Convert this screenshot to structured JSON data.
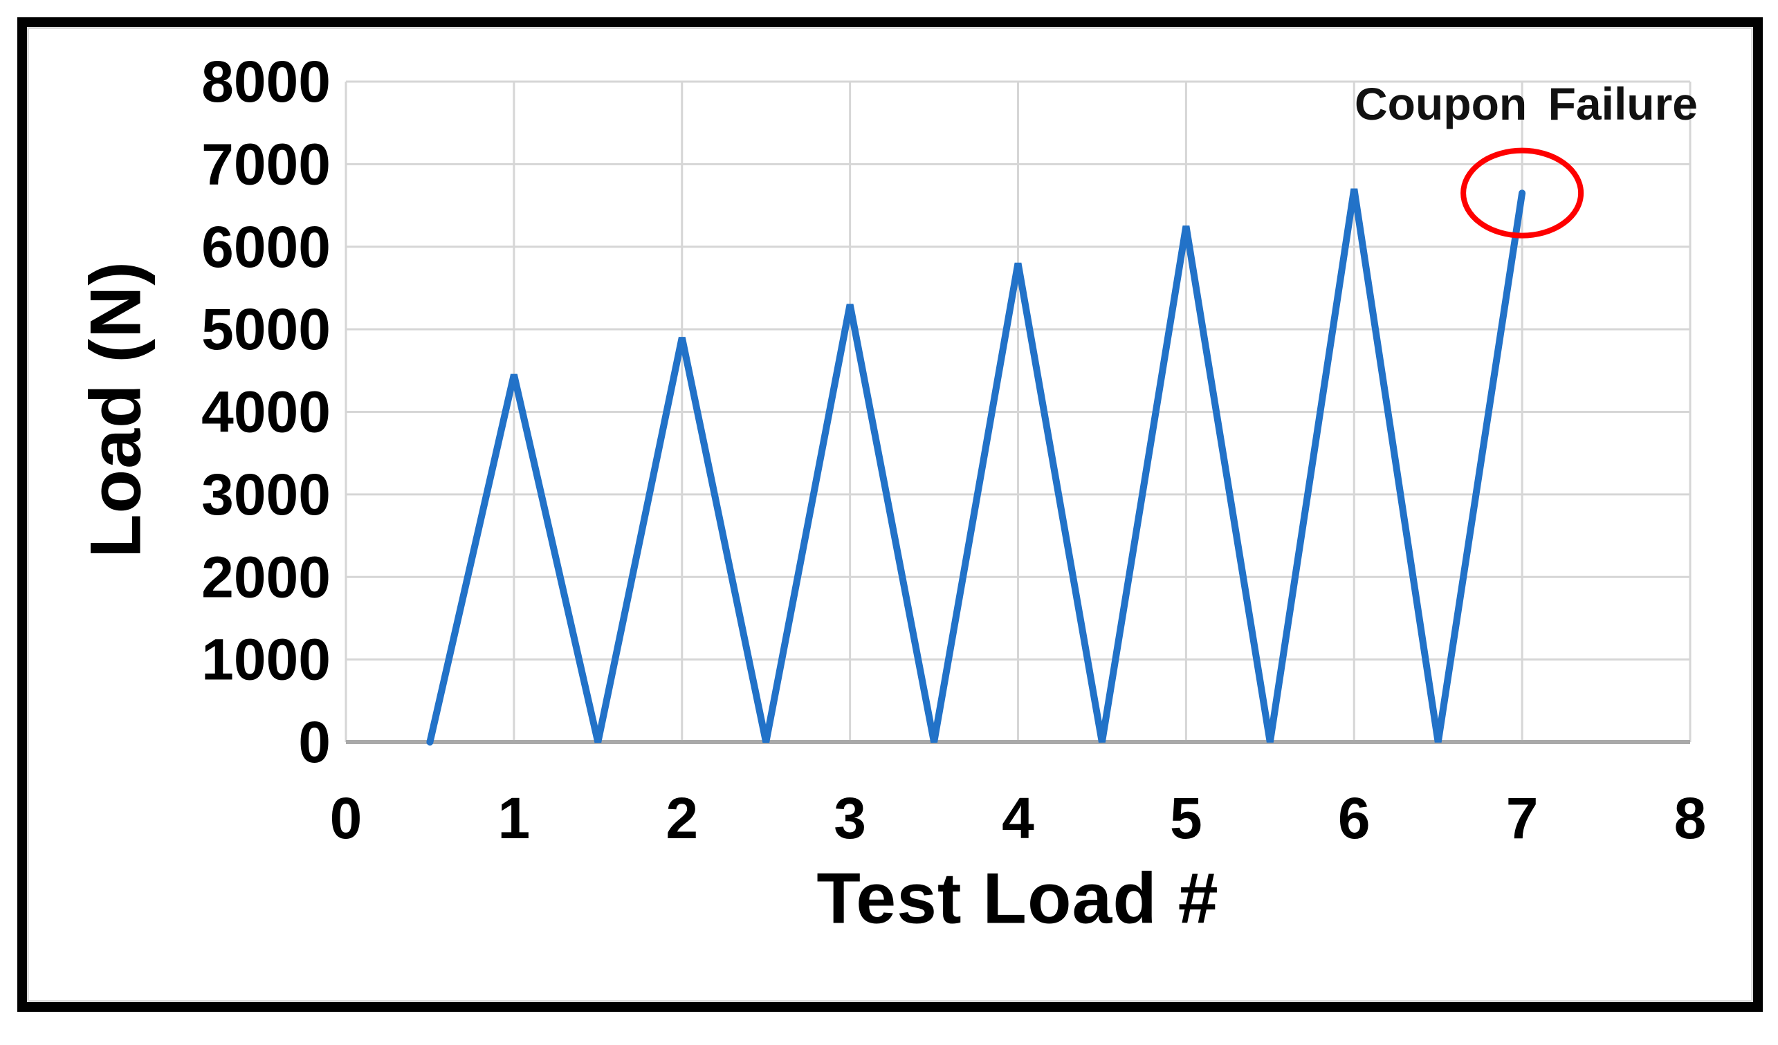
{
  "chart_data": {
    "type": "line",
    "title": "",
    "xlabel": "Test Load #",
    "ylabel": "Load (N)",
    "xlim": [
      0,
      8
    ],
    "ylim": [
      0,
      8000
    ],
    "x_ticks": [
      0,
      1,
      2,
      3,
      4,
      5,
      6,
      7,
      8
    ],
    "y_ticks": [
      0,
      1000,
      2000,
      3000,
      4000,
      5000,
      6000,
      7000,
      8000
    ],
    "grid": true,
    "legend": "none",
    "series": [
      {
        "x": [
          0.5,
          1,
          1.5,
          2,
          2.5,
          3,
          3.5,
          4,
          4.5,
          5,
          5.5,
          6,
          6.5,
          7
        ],
        "y": [
          0,
          4450,
          0,
          4900,
          0,
          5300,
          0,
          5800,
          0,
          6250,
          0,
          6700,
          0,
          6650
        ],
        "color": "#2272C8"
      }
    ],
    "annotation": {
      "text": "Coupon Failure",
      "ellipse": {
        "cx": 7,
        "cy": 6650,
        "rx": 0.35,
        "ry": 515,
        "color": "#FE0000"
      }
    },
    "style": {
      "grid_color": "#D6D6D6",
      "axis_color": "#A9A9A9",
      "text_color": "#000000"
    }
  }
}
